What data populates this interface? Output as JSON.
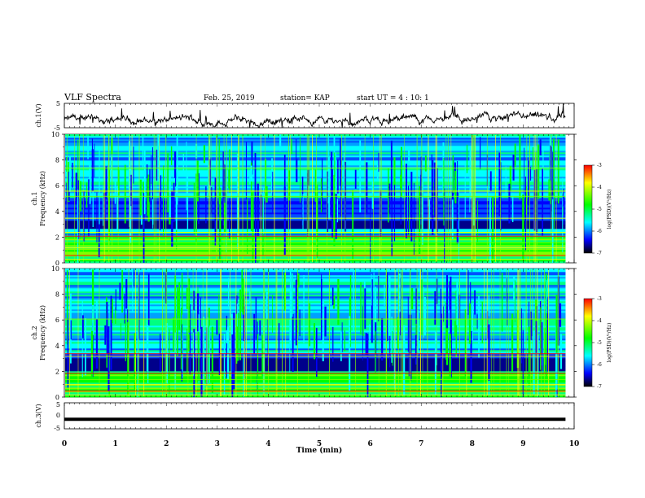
{
  "header": {
    "title": "VLF Spectra",
    "date": "Feb. 25, 2019",
    "station": "station= KAP",
    "start_time": "start  UT =  4 : 10: 1"
  },
  "chart_data": [
    {
      "type": "line",
      "panel": "ch1-waveform",
      "ylabel": "ch.1(V)",
      "ylim": [
        -5,
        5
      ],
      "yticks": [
        "5",
        "-5"
      ],
      "x_data_end_min": 9.83,
      "note_series": "noisy waveform fluctuating around ~ -2 V between 0 and 9.83 min"
    },
    {
      "type": "heatmap",
      "panel": "ch1-spectrogram",
      "ylabel_line1": "ch.1",
      "ylabel_line2": "Frequency (kHz)",
      "ylim": [
        0,
        10
      ],
      "yticks": [
        "0",
        "2",
        "4",
        "6",
        "8",
        "10"
      ],
      "colorbar": {
        "label": "log(PSD)(V²/Hz)",
        "range": [
          -7,
          -3
        ],
        "ticks": [
          "-3",
          "-4",
          "-5",
          "-6",
          "-7"
        ],
        "colors": [
          "#ff0000",
          "#ffff00",
          "#00ff00",
          "#00ffff",
          "#0000ff",
          "#000000"
        ]
      },
      "dark_band_khz": [
        2.6,
        3.3
      ],
      "quiet_band_khz": [
        3.6,
        5.0
      ]
    },
    {
      "type": "heatmap",
      "panel": "ch2-spectrogram",
      "ylabel_line1": "ch.2",
      "ylabel_line2": "Frequency (kHz)",
      "ylim": [
        0,
        10
      ],
      "yticks": [
        "0",
        "2",
        "4",
        "6",
        "8",
        "10"
      ],
      "colorbar": {
        "label": "log(PSD)(V²/Hz)",
        "range": [
          -7,
          -3
        ],
        "ticks": [
          "-3",
          "-4",
          "-5",
          "-6",
          "-7"
        ],
        "colors": [
          "#ff0000",
          "#ffff00",
          "#00ff00",
          "#00ffff",
          "#0000ff",
          "#000000"
        ]
      },
      "dark_band_khz": [
        2.0,
        3.0
      ],
      "quiet_band_khz": [
        3.0,
        3.4
      ]
    },
    {
      "type": "line",
      "panel": "ch3-waveform",
      "ylabel": "ch.3(V)",
      "ylim": [
        -5,
        5
      ],
      "yticks": [
        "5",
        "0",
        "-5"
      ],
      "x": [
        0,
        9.83
      ],
      "y": [
        -1.3,
        -1.3
      ]
    }
  ],
  "xaxis": {
    "label": "Time (min)",
    "range": [
      0,
      10
    ],
    "ticks": [
      "0",
      "1",
      "2",
      "3",
      "4",
      "5",
      "6",
      "7",
      "8",
      "9",
      "10"
    ]
  }
}
